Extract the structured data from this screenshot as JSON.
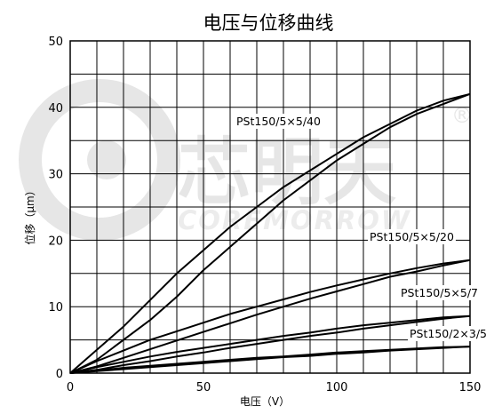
{
  "chart_data": {
    "type": "line",
    "title": "电压与位移曲线",
    "xlabel": "电压（V）",
    "ylabel": "位移（μm）",
    "xlim": [
      0,
      150
    ],
    "ylim": [
      0,
      50
    ],
    "x_minor_step": 10,
    "y_minor_step": 5,
    "x_ticks": [
      0,
      50,
      100,
      150
    ],
    "y_ticks": [
      0,
      10,
      20,
      30,
      40,
      50
    ],
    "grid": true,
    "line_color": "#000000",
    "grid_color": "#000000",
    "series": [
      {
        "name": "PSt150/5×5/40",
        "up": [
          [
            0,
            0
          ],
          [
            10,
            2
          ],
          [
            20,
            5
          ],
          [
            30,
            8
          ],
          [
            40,
            11.5
          ],
          [
            50,
            15.5
          ],
          [
            60,
            19
          ],
          [
            70,
            22.5
          ],
          [
            80,
            26
          ],
          [
            90,
            29
          ],
          [
            100,
            32
          ],
          [
            110,
            34.5
          ],
          [
            120,
            37
          ],
          [
            130,
            39
          ],
          [
            140,
            40.5
          ],
          [
            150,
            42
          ]
        ],
        "down": [
          [
            150,
            42
          ],
          [
            140,
            41
          ],
          [
            130,
            39.5
          ],
          [
            120,
            37.5
          ],
          [
            110,
            35.5
          ],
          [
            100,
            33
          ],
          [
            90,
            30.5
          ],
          [
            80,
            28
          ],
          [
            70,
            25
          ],
          [
            60,
            22
          ],
          [
            50,
            18.5
          ],
          [
            40,
            15
          ],
          [
            30,
            11
          ],
          [
            20,
            7
          ],
          [
            10,
            3.5
          ],
          [
            0,
            0
          ]
        ]
      },
      {
        "name": "PSt150/5×5/20",
        "up": [
          [
            0,
            0
          ],
          [
            10,
            1
          ],
          [
            20,
            2.3
          ],
          [
            30,
            3.6
          ],
          [
            40,
            4.9
          ],
          [
            50,
            6.2
          ],
          [
            60,
            7.5
          ],
          [
            70,
            8.8
          ],
          [
            80,
            10
          ],
          [
            90,
            11.2
          ],
          [
            100,
            12.3
          ],
          [
            110,
            13.4
          ],
          [
            120,
            14.5
          ],
          [
            130,
            15.3
          ],
          [
            140,
            16.2
          ],
          [
            150,
            17
          ]
        ],
        "down": [
          [
            150,
            17
          ],
          [
            140,
            16.5
          ],
          [
            130,
            15.8
          ],
          [
            120,
            15
          ],
          [
            110,
            14.1
          ],
          [
            100,
            13.2
          ],
          [
            90,
            12.2
          ],
          [
            80,
            11.1
          ],
          [
            70,
            10
          ],
          [
            60,
            8.9
          ],
          [
            50,
            7.6
          ],
          [
            40,
            6.3
          ],
          [
            30,
            5
          ],
          [
            20,
            3.4
          ],
          [
            10,
            1.8
          ],
          [
            0,
            0
          ]
        ]
      },
      {
        "name": "PSt150/5×5/7",
        "up": [
          [
            0,
            0
          ],
          [
            10,
            0.5
          ],
          [
            20,
            1.2
          ],
          [
            30,
            1.8
          ],
          [
            40,
            2.5
          ],
          [
            50,
            3.1
          ],
          [
            60,
            3.8
          ],
          [
            70,
            4.4
          ],
          [
            80,
            5
          ],
          [
            90,
            5.6
          ],
          [
            100,
            6.1
          ],
          [
            110,
            6.7
          ],
          [
            120,
            7.2
          ],
          [
            130,
            7.7
          ],
          [
            140,
            8.2
          ],
          [
            150,
            8.6
          ]
        ],
        "down": [
          [
            150,
            8.6
          ],
          [
            140,
            8.4
          ],
          [
            130,
            8
          ],
          [
            120,
            7.6
          ],
          [
            110,
            7.2
          ],
          [
            100,
            6.7
          ],
          [
            90,
            6.1
          ],
          [
            80,
            5.6
          ],
          [
            70,
            5
          ],
          [
            60,
            4.4
          ],
          [
            50,
            3.8
          ],
          [
            40,
            3.2
          ],
          [
            30,
            2.5
          ],
          [
            20,
            1.7
          ],
          [
            10,
            0.9
          ],
          [
            0,
            0
          ]
        ]
      },
      {
        "name": "PSt150/2×3/5",
        "up": [
          [
            0,
            0
          ],
          [
            10,
            0.3
          ],
          [
            20,
            0.6
          ],
          [
            30,
            0.9
          ],
          [
            40,
            1.2
          ],
          [
            50,
            1.5
          ],
          [
            60,
            1.8
          ],
          [
            70,
            2.1
          ],
          [
            80,
            2.4
          ],
          [
            90,
            2.6
          ],
          [
            100,
            2.9
          ],
          [
            110,
            3.1
          ],
          [
            120,
            3.4
          ],
          [
            130,
            3.6
          ],
          [
            140,
            3.8
          ],
          [
            150,
            4
          ]
        ],
        "down": [
          [
            150,
            4
          ],
          [
            140,
            3.9
          ],
          [
            130,
            3.7
          ],
          [
            120,
            3.5
          ],
          [
            110,
            3.3
          ],
          [
            100,
            3.1
          ],
          [
            90,
            2.8
          ],
          [
            80,
            2.5
          ],
          [
            70,
            2.3
          ],
          [
            60,
            2
          ],
          [
            50,
            1.7
          ],
          [
            40,
            1.4
          ],
          [
            30,
            1.1
          ],
          [
            20,
            0.8
          ],
          [
            10,
            0.4
          ],
          [
            0,
            0
          ]
        ]
      }
    ]
  },
  "watermark": {
    "brand_cn": "芯明天",
    "brand_en": "COREMORROW",
    "registered": "®",
    "color": "#e6e6e6"
  }
}
